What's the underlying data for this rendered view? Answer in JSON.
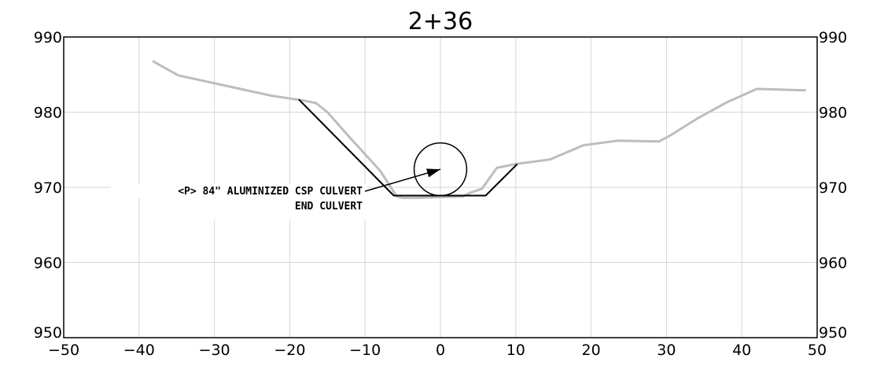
{
  "chart_data": {
    "type": "line",
    "title": "2+36",
    "xlim": [
      -50,
      50
    ],
    "ylim": [
      950,
      990
    ],
    "x_ticks": [
      -50,
      -40,
      -30,
      -20,
      -10,
      0,
      10,
      20,
      30,
      40,
      50
    ],
    "y_ticks": [
      950,
      960,
      970,
      980,
      990
    ],
    "x_tick_labels": [
      "−50",
      "−40",
      "−30",
      "−20",
      "−10",
      "0",
      "10",
      "20",
      "30",
      "40",
      "50"
    ],
    "y_tick_labels": [
      "950",
      "960",
      "970",
      "980",
      "990"
    ],
    "grid": true,
    "series": [
      {
        "key": "existing-ground",
        "color": "#bdbdbd",
        "x": [
          -38.2,
          -34.8,
          -27.5,
          -22.5,
          -18.5,
          -16.5,
          -15.0,
          -12.0,
          -8.0,
          -5.8,
          -5.0,
          -3.0,
          3.0,
          4.0,
          5.5,
          7.5,
          10.0,
          14.5,
          19.0,
          23.5,
          29.0,
          30.5,
          34.0,
          38.0,
          42.0,
          48.5
        ],
        "y": [
          986.8,
          984.9,
          983.3,
          982.2,
          981.6,
          981.2,
          980.0,
          976.6,
          972.2,
          968.8,
          968.6,
          968.6,
          968.8,
          969.3,
          969.8,
          972.6,
          973.1,
          973.7,
          975.6,
          976.2,
          976.1,
          976.9,
          979.1,
          981.3,
          983.1,
          982.9
        ]
      },
      {
        "key": "design-section",
        "color": "#000000",
        "x": [
          -18.8,
          -6.2,
          6.0,
          10.2
        ],
        "y": [
          981.7,
          968.9,
          968.9,
          973.1
        ]
      }
    ],
    "culvert": {
      "center_x": 0,
      "center_y": 972.4,
      "diameter_ft": 7
    },
    "annotations": [
      "<P> 84\" ALUMINIZED CSP CULVERT",
      "END CULVERT"
    ]
  }
}
